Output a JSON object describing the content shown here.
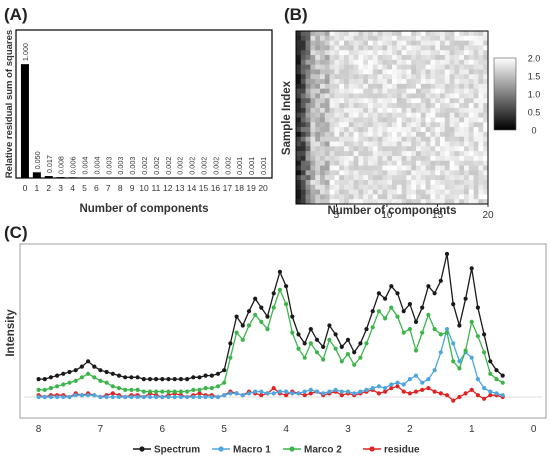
{
  "panels": {
    "a": {
      "label": "(A)"
    },
    "b": {
      "label": "(B)"
    },
    "c": {
      "label": "(C)"
    }
  },
  "chart_data": [
    {
      "type": "bar",
      "panel": "A",
      "ylabel": "Relative residual sum of squares",
      "xlabel": "Number of components",
      "categories": [
        "0",
        "1",
        "2",
        "3",
        "4",
        "5",
        "6",
        "7",
        "8",
        "9",
        "10",
        "11",
        "12",
        "13",
        "14",
        "15",
        "16",
        "17",
        "18",
        "19",
        "20"
      ],
      "values": [
        1.0,
        0.05,
        0.017,
        0.008,
        0.006,
        0.004,
        0.004,
        0.003,
        0.003,
        0.003,
        0.002,
        0.002,
        0.002,
        0.002,
        0.002,
        0.002,
        0.002,
        0.002,
        0.001,
        0.001,
        0.001
      ],
      "value_labels": [
        "1.000",
        "0.050",
        "0.017",
        "0.008",
        "0.006",
        "0.004",
        "0.004",
        "0.003",
        "0.003",
        "0.003",
        "0.002",
        "0.002",
        "0.002",
        "0.002",
        "0.002",
        "0.002",
        "0.002",
        "0.002",
        "0.001",
        "0.001",
        "0.001"
      ],
      "ylim": [
        0,
        1.3
      ],
      "bar_color": "#000000"
    },
    {
      "type": "heatmap",
      "panel": "B",
      "ylabel": "Sample Index",
      "xlabel": "Number of components",
      "xticks": [
        "5",
        "10",
        "15",
        "20"
      ],
      "xlim": [
        1,
        20
      ],
      "n_columns": 40,
      "n_rows": 36,
      "colorbar": {
        "ticks": [
          "0",
          "0.5",
          "1.0",
          "1.5",
          "2.0"
        ],
        "min": 0,
        "max": 2.0,
        "low_color": "#000000",
        "high_color": "#ffffff"
      }
    },
    {
      "type": "line",
      "panel": "C",
      "ylabel": "Intensity",
      "xlabel": "",
      "xticks": [
        "8",
        "7",
        "6",
        "5",
        "4",
        "3",
        "2",
        "1",
        "0"
      ],
      "xlim": [
        8.3,
        -0.2
      ],
      "x_reversed": true,
      "legend_position": "bottom",
      "x": [
        8.0,
        7.9,
        7.8,
        7.7,
        7.6,
        7.5,
        7.4,
        7.3,
        7.2,
        7.1,
        7.0,
        6.9,
        6.8,
        6.7,
        6.6,
        6.5,
        6.4,
        6.3,
        6.2,
        6.1,
        6.0,
        5.9,
        5.8,
        5.7,
        5.6,
        5.5,
        5.4,
        5.3,
        5.2,
        5.1,
        5.0,
        4.9,
        4.8,
        4.7,
        4.6,
        4.5,
        4.4,
        4.3,
        4.2,
        4.1,
        4.0,
        3.9,
        3.8,
        3.7,
        3.6,
        3.5,
        3.4,
        3.3,
        3.2,
        3.1,
        3.0,
        2.9,
        2.8,
        2.7,
        2.6,
        2.5,
        2.4,
        2.3,
        2.2,
        2.1,
        2.0,
        1.9,
        1.8,
        1.7,
        1.6,
        1.5,
        1.4,
        1.3,
        1.2,
        1.1,
        1.0,
        0.9,
        0.8,
        0.7,
        0.6,
        0.5
      ],
      "series": [
        {
          "name": "Spectrum",
          "color": "#1a1a1a",
          "values": [
            0.1,
            0.1,
            0.11,
            0.12,
            0.13,
            0.14,
            0.15,
            0.17,
            0.2,
            0.17,
            0.15,
            0.14,
            0.13,
            0.12,
            0.11,
            0.11,
            0.11,
            0.1,
            0.1,
            0.1,
            0.1,
            0.1,
            0.1,
            0.1,
            0.1,
            0.11,
            0.11,
            0.12,
            0.12,
            0.13,
            0.15,
            0.3,
            0.45,
            0.4,
            0.48,
            0.55,
            0.5,
            0.45,
            0.58,
            0.7,
            0.62,
            0.45,
            0.35,
            0.3,
            0.38,
            0.32,
            0.28,
            0.4,
            0.35,
            0.28,
            0.32,
            0.25,
            0.3,
            0.38,
            0.48,
            0.58,
            0.55,
            0.62,
            0.58,
            0.48,
            0.52,
            0.42,
            0.5,
            0.62,
            0.58,
            0.65,
            0.8,
            0.52,
            0.4,
            0.55,
            0.72,
            0.5,
            0.35,
            0.2,
            0.15,
            0.12
          ]
        },
        {
          "name": "Macro 1",
          "color": "#4da6e0",
          "values": [
            0.0,
            0.0,
            0.0,
            0.0,
            0.0,
            0.0,
            0.01,
            0.01,
            0.01,
            0.01,
            0.0,
            0.0,
            0.0,
            0.0,
            0.0,
            0.0,
            0.0,
            0.0,
            0.0,
            0.0,
            0.0,
            0.0,
            0.0,
            0.0,
            0.0,
            0.0,
            0.0,
            0.0,
            0.0,
            0.0,
            0.01,
            0.02,
            0.02,
            0.01,
            0.02,
            0.03,
            0.03,
            0.02,
            0.02,
            0.03,
            0.03,
            0.02,
            0.02,
            0.03,
            0.04,
            0.03,
            0.02,
            0.03,
            0.04,
            0.03,
            0.03,
            0.02,
            0.03,
            0.04,
            0.05,
            0.06,
            0.05,
            0.07,
            0.08,
            0.07,
            0.1,
            0.12,
            0.08,
            0.1,
            0.15,
            0.25,
            0.38,
            0.3,
            0.2,
            0.25,
            0.22,
            0.1,
            0.05,
            0.03,
            0.02,
            0.01
          ]
        },
        {
          "name": "Marco 2",
          "color": "#3cb54a",
          "values": [
            0.04,
            0.04,
            0.05,
            0.06,
            0.07,
            0.08,
            0.09,
            0.11,
            0.13,
            0.11,
            0.09,
            0.08,
            0.06,
            0.05,
            0.04,
            0.04,
            0.04,
            0.03,
            0.03,
            0.03,
            0.03,
            0.03,
            0.03,
            0.03,
            0.03,
            0.04,
            0.04,
            0.05,
            0.05,
            0.06,
            0.08,
            0.22,
            0.36,
            0.32,
            0.4,
            0.46,
            0.42,
            0.38,
            0.5,
            0.6,
            0.52,
            0.36,
            0.27,
            0.22,
            0.3,
            0.25,
            0.21,
            0.32,
            0.27,
            0.2,
            0.24,
            0.18,
            0.22,
            0.3,
            0.39,
            0.48,
            0.44,
            0.5,
            0.45,
            0.36,
            0.38,
            0.26,
            0.36,
            0.46,
            0.38,
            0.35,
            0.36,
            0.2,
            0.16,
            0.26,
            0.42,
            0.34,
            0.25,
            0.13,
            0.1,
            0.08
          ]
        },
        {
          "name": "residue",
          "color": "#e02424",
          "values": [
            0.01,
            0.0,
            0.01,
            0.01,
            0.01,
            0.0,
            0.02,
            0.01,
            0.02,
            0.01,
            0.0,
            0.01,
            0.02,
            0.01,
            0.0,
            0.01,
            0.01,
            0.0,
            0.02,
            0.01,
            0.0,
            0.01,
            0.02,
            0.01,
            0.0,
            0.01,
            0.02,
            0.01,
            0.01,
            0.0,
            0.01,
            0.03,
            0.02,
            0.01,
            0.03,
            0.02,
            0.01,
            0.02,
            0.05,
            0.02,
            0.01,
            0.03,
            0.02,
            0.01,
            0.02,
            0.03,
            0.01,
            0.02,
            0.03,
            0.01,
            0.02,
            0.01,
            0.02,
            0.03,
            0.04,
            0.02,
            0.03,
            0.05,
            0.06,
            0.03,
            0.02,
            0.03,
            0.04,
            0.05,
            0.03,
            0.02,
            0.01,
            -0.02,
            0.0,
            0.02,
            0.04,
            0.01,
            -0.01,
            0.01,
            0.01,
            0.0
          ]
        }
      ],
      "ylim": [
        -0.08,
        0.9
      ]
    }
  ]
}
